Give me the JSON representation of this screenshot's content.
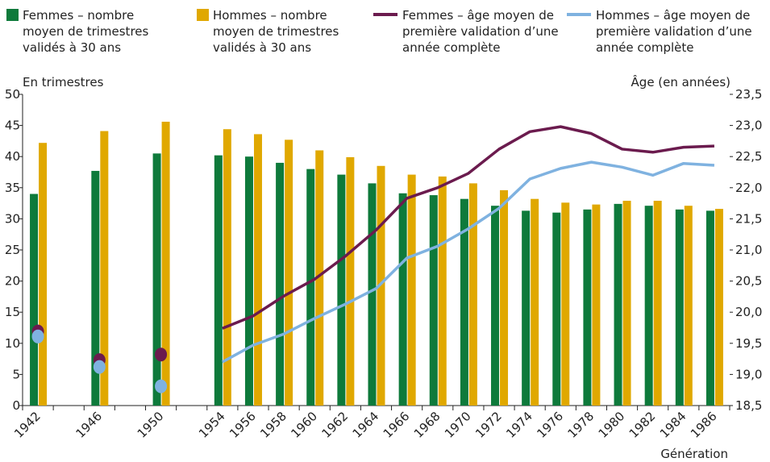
{
  "chart_data": {
    "type": "bar",
    "y_label": "En trimestres",
    "y2_label": "Âge (en années)",
    "x_label": "Génération",
    "categories": [
      "1942",
      null,
      "1946",
      null,
      "1950",
      null,
      "1954",
      "1956",
      "1958",
      "1960",
      "1962",
      "1964",
      "1966",
      "1968",
      "1970",
      "1972",
      "1974",
      "1976",
      "1978",
      "1980",
      "1982",
      "1984",
      "1986"
    ],
    "series": [
      {
        "name": "Femmes – nombre moyen de trimestres validés à 30 ans",
        "type": "bar",
        "color": "#0e7a3b",
        "values": [
          34,
          null,
          37.7,
          null,
          40.5,
          null,
          40.2,
          40,
          39,
          38,
          37.1,
          35.7,
          34.1,
          33.8,
          33.2,
          32.1,
          31.3,
          31,
          31.5,
          32.4,
          32.1,
          31.5,
          31.3
        ]
      },
      {
        "name": "Hommes – nombre moyen de trimestres validés à 30 ans",
        "type": "bar",
        "color": "#e0a800",
        "values": [
          42.2,
          null,
          44.1,
          null,
          45.6,
          null,
          44.4,
          43.6,
          42.7,
          41,
          39.9,
          38.5,
          37.1,
          36.8,
          35.7,
          34.6,
          33.2,
          32.6,
          32.3,
          32.9,
          32.9,
          32.1,
          31.6
        ]
      },
      {
        "name": "Femmes – âge moyen de première validation d’une année complète",
        "type": "line",
        "axis": "y2",
        "color": "#6b1b4e",
        "values": [
          19.69,
          null,
          19.23,
          null,
          19.32,
          null,
          19.74,
          19.94,
          20.26,
          20.53,
          20.9,
          21.32,
          21.83,
          22.0,
          22.23,
          22.62,
          22.9,
          22.98,
          22.87,
          22.62,
          22.57,
          22.65,
          22.67
        ]
      },
      {
        "name": "Hommes – âge moyen de première validation d’une année complète",
        "type": "line",
        "axis": "y2",
        "color": "#7fb2e0",
        "values": [
          19.61,
          null,
          19.12,
          null,
          18.81,
          null,
          19.2,
          19.47,
          19.65,
          19.9,
          20.13,
          20.38,
          20.87,
          21.06,
          21.34,
          21.67,
          22.14,
          22.31,
          22.41,
          22.33,
          22.2,
          22.39,
          22.36
        ]
      }
    ],
    "ylim": [
      0,
      50
    ],
    "yticks": [
      0,
      5,
      10,
      15,
      20,
      25,
      30,
      35,
      40,
      45,
      50
    ],
    "y2lim": [
      18.5,
      23.5
    ],
    "y2ticks": [
      {
        "value": 18.5,
        "label": "18,5"
      },
      {
        "value": 19,
        "label": "19,0"
      },
      {
        "value": 19.5,
        "label": "19,5"
      },
      {
        "value": 20,
        "label": "20,0"
      },
      {
        "value": 20.5,
        "label": "20,5"
      },
      {
        "value": 21,
        "label": "21,0"
      },
      {
        "value": 21.5,
        "label": "21,5"
      },
      {
        "value": 22,
        "label": "22,0"
      },
      {
        "value": 22.5,
        "label": "22,5"
      },
      {
        "value": 23,
        "label": "23,0"
      },
      {
        "value": 23.5,
        "label": "23,5"
      }
    ],
    "grid": false
  }
}
